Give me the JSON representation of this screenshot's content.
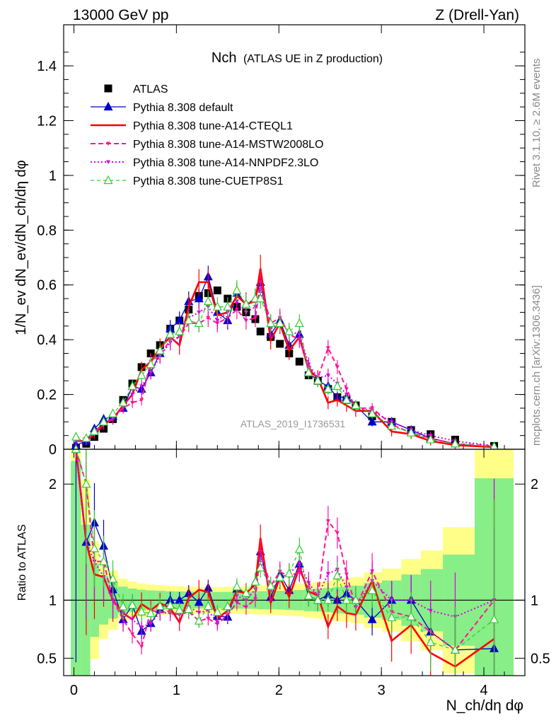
{
  "header": {
    "left": "13000 GeV pp",
    "right": "Z (Drell-Yan)"
  },
  "side_labels": {
    "rivet": "Rivet 3.1.10, ≥ 2.6M events",
    "mcplots": "mcplots.cern.ch [arXiv:1306.3436]"
  },
  "watermark": "ATLAS_2019_I1736531",
  "chart_data": {
    "type": "scatter",
    "title": "Nch",
    "subtitle": "(ATLAS UE in Z production)",
    "xlabel": "N_ch/dη dφ",
    "ylabel": "1/N_ev dN_ev/dN_ch/dη dφ",
    "ratio_ylabel": "Ratio to ATLAS",
    "xlim": [
      -0.1,
      4.4
    ],
    "ylim": [
      0,
      1.55
    ],
    "ratio_ylim": [
      0.35,
      2.3
    ],
    "x_ticks": [
      "0",
      "1",
      "2",
      "3",
      "4"
    ],
    "y_ticks": [
      "0",
      "0.2",
      "0.4",
      "0.6",
      "0.8",
      "1",
      "1.2",
      "1.4"
    ],
    "ratio_ticks": [
      "0.5",
      "1",
      "2"
    ],
    "legend_position": "top-left",
    "x": [
      0.02,
      0.12,
      0.2,
      0.29,
      0.38,
      0.48,
      0.57,
      0.66,
      0.75,
      0.84,
      0.94,
      1.03,
      1.12,
      1.22,
      1.31,
      1.4,
      1.5,
      1.59,
      1.68,
      1.77,
      1.82,
      1.92,
      2.01,
      2.1,
      2.2,
      2.29,
      2.38,
      2.48,
      2.57,
      2.66,
      2.75,
      2.91,
      3.1,
      3.29,
      3.48,
      3.72,
      4.1
    ],
    "series": [
      {
        "name": "ATLAS",
        "color": "#000000",
        "values": [
          0.005,
          0.02,
          0.045,
          0.075,
          0.11,
          0.18,
          0.24,
          0.3,
          0.35,
          0.38,
          0.44,
          0.47,
          0.51,
          0.56,
          0.57,
          0.58,
          0.55,
          0.52,
          0.5,
          0.475,
          0.43,
          0.41,
          0.385,
          0.35,
          0.32,
          0.27,
          0.25,
          0.22,
          0.19,
          0.18,
          0.16,
          0.12,
          0.1,
          0.07,
          0.055,
          0.035,
          0.012
        ]
      },
      {
        "name": "Pythia 8.308 default",
        "color": "#0000cc",
        "values": [
          0.015,
          0.03,
          0.075,
          0.11,
          0.12,
          0.15,
          0.23,
          0.22,
          0.28,
          0.35,
          0.44,
          0.47,
          0.54,
          0.55,
          0.63,
          0.5,
          0.47,
          0.57,
          0.53,
          0.55,
          0.61,
          0.42,
          0.47,
          0.38,
          0.42,
          0.28,
          0.25,
          0.23,
          0.19,
          0.19,
          0.16,
          0.1,
          0.1,
          0.07,
          0.04,
          0.02,
          0.007
        ]
      },
      {
        "name": "Pythia 8.308 tune-A14-CTEQL1",
        "color": "#ff0000",
        "values": [
          0.03,
          0.03,
          0.055,
          0.09,
          0.11,
          0.16,
          0.2,
          0.29,
          0.32,
          0.37,
          0.41,
          0.38,
          0.52,
          0.61,
          0.61,
          0.49,
          0.5,
          0.56,
          0.53,
          0.54,
          0.66,
          0.4,
          0.46,
          0.36,
          0.41,
          0.29,
          0.26,
          0.17,
          0.18,
          0.16,
          0.14,
          0.14,
          0.065,
          0.055,
          0.03,
          0.015,
          0.008
        ]
      },
      {
        "name": "Pythia 8.308 tune-A14-MSTW2008LO",
        "color": "#ff1493",
        "values": [
          0.03,
          0.04,
          0.06,
          0.1,
          0.11,
          0.15,
          0.17,
          0.18,
          0.32,
          0.34,
          0.4,
          0.41,
          0.46,
          0.46,
          0.48,
          0.46,
          0.48,
          0.51,
          0.47,
          0.48,
          0.61,
          0.46,
          0.48,
          0.42,
          0.4,
          0.3,
          0.26,
          0.37,
          0.3,
          0.22,
          0.15,
          0.15,
          0.09,
          0.06,
          0.04,
          0.02,
          0.012
        ]
      },
      {
        "name": "Pythia 8.308 tune-A14-NNPDF2.3LO",
        "color": "#dd00dd",
        "values": [
          0.03,
          0.03,
          0.06,
          0.09,
          0.11,
          0.16,
          0.2,
          0.23,
          0.28,
          0.34,
          0.39,
          0.41,
          0.48,
          0.5,
          0.52,
          0.47,
          0.5,
          0.54,
          0.5,
          0.52,
          0.58,
          0.44,
          0.46,
          0.43,
          0.42,
          0.31,
          0.26,
          0.27,
          0.24,
          0.2,
          0.15,
          0.14,
          0.1,
          0.07,
          0.05,
          0.03,
          0.012
        ]
      },
      {
        "name": "Pythia 8.308 tune-CUETP8S1",
        "color": "#33cc33",
        "values": [
          0.045,
          0.04,
          0.065,
          0.1,
          0.13,
          0.17,
          0.23,
          0.27,
          0.31,
          0.36,
          0.42,
          0.43,
          0.47,
          0.46,
          0.54,
          0.52,
          0.52,
          0.58,
          0.53,
          0.55,
          0.55,
          0.46,
          0.46,
          0.43,
          0.46,
          0.28,
          0.25,
          0.22,
          0.23,
          0.18,
          0.16,
          0.13,
          0.085,
          0.06,
          0.035,
          0.02,
          0.01
        ]
      }
    ]
  }
}
